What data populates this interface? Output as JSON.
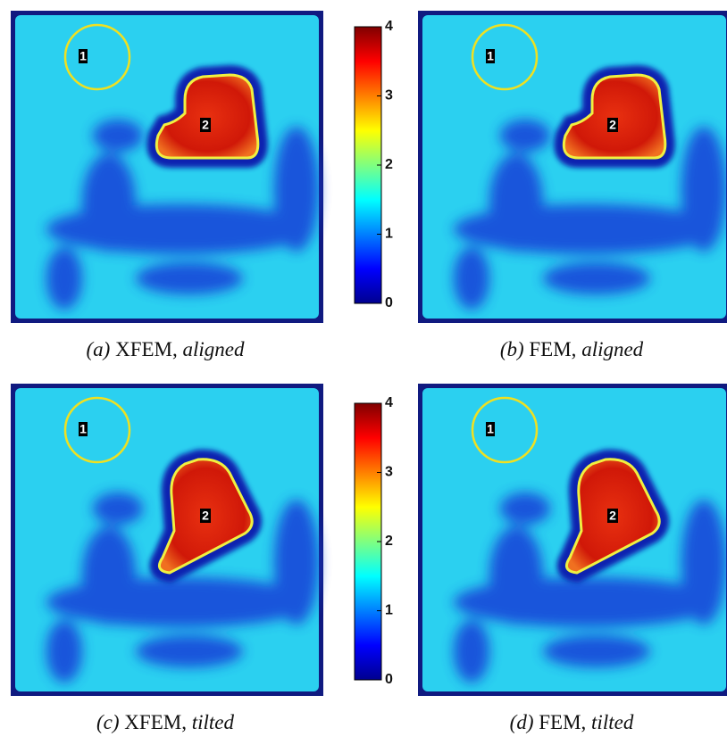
{
  "panels": [
    {
      "caption": {
        "label": "(a)",
        "method": "XFEM,",
        "setting": "aligned"
      },
      "regions": [
        "1",
        "2"
      ]
    },
    {
      "caption": {
        "label": "(b)",
        "method": "FEM,",
        "setting": "aligned"
      },
      "regions": [
        "1",
        "2"
      ]
    },
    {
      "caption": {
        "label": "(c)",
        "method": "XFEM,",
        "setting": "tilted"
      },
      "regions": [
        "1",
        "2"
      ]
    },
    {
      "caption": {
        "label": "(d)",
        "method": "FEM,",
        "setting": "tilted"
      },
      "regions": [
        "1",
        "2"
      ]
    }
  ],
  "colorbars": [
    {
      "range": [
        0,
        4
      ],
      "ticks": [
        0,
        1,
        2,
        3,
        4
      ]
    },
    {
      "range": [
        0,
        4
      ],
      "ticks": [
        0,
        1,
        2,
        3,
        4
      ]
    }
  ]
}
